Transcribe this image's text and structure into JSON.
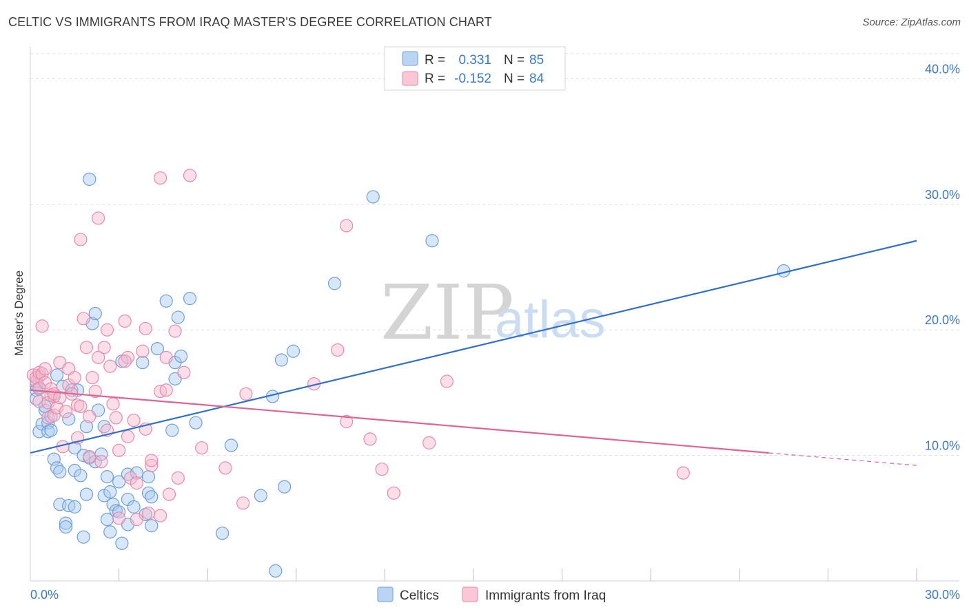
{
  "title": "CELTIC VS IMMIGRANTS FROM IRAQ MASTER'S DEGREE CORRELATION CHART",
  "source": "Source: ZipAtlas.com",
  "watermark": {
    "part1": "ZIP",
    "part2": "atlas"
  },
  "colors": {
    "celtic_fill": "#a9c9f0",
    "celtic_stroke": "#6d9fdb",
    "celtic_line": "#2f6fcf",
    "iraq_fill": "#f7b9cc",
    "iraq_stroke": "#e98aa8",
    "iraq_line": "#e2638f",
    "axis_label": "#3b78c8",
    "grid": "#dcdcdc"
  },
  "legend": {
    "r_label": "R =",
    "n_label": "N =",
    "rows": [
      {
        "r": "0.331",
        "n": "85"
      },
      {
        "r": "-0.152",
        "n": "84"
      }
    ]
  },
  "chart_data": {
    "type": "scatter",
    "title": "CELTIC VS IMMIGRANTS FROM IRAQ MASTER'S DEGREE CORRELATION CHART",
    "xlabel": "",
    "ylabel": "Master's Degree",
    "xlim": [
      0,
      30
    ],
    "ylim": [
      0,
      42
    ],
    "x_tick_labels": [
      {
        "value": 0,
        "label": "0.0%"
      },
      {
        "value": 30,
        "label": "30.0%"
      }
    ],
    "y_tick_labels": [
      {
        "value": 10,
        "label": "10.0%"
      },
      {
        "value": 20,
        "label": "20.0%"
      },
      {
        "value": 30,
        "label": "30.0%"
      },
      {
        "value": 40,
        "label": "40.0%"
      }
    ],
    "x_minor_ticks": [
      3,
      6,
      9,
      12,
      15,
      18,
      21,
      24,
      27,
      30
    ],
    "grid": true,
    "series": [
      {
        "name": "Celtics",
        "trend": {
          "x": [
            0,
            30
          ],
          "y": [
            10.2,
            27.1
          ],
          "dashed_from": null
        },
        "points": [
          [
            0.2,
            15.6
          ],
          [
            0.2,
            15.2
          ],
          [
            0.2,
            14.5
          ],
          [
            0.3,
            16.3
          ],
          [
            0.3,
            15.4
          ],
          [
            0.3,
            11.9
          ],
          [
            0.4,
            12.5
          ],
          [
            0.5,
            13.6
          ],
          [
            0.5,
            13.9
          ],
          [
            0.6,
            12.6
          ],
          [
            0.6,
            11.9
          ],
          [
            0.7,
            13.1
          ],
          [
            0.7,
            12.0
          ],
          [
            0.8,
            14.7
          ],
          [
            0.8,
            9.7
          ],
          [
            0.9,
            9.0
          ],
          [
            0.9,
            16.4
          ],
          [
            1.0,
            8.7
          ],
          [
            1.0,
            6.1
          ],
          [
            1.1,
            15.5
          ],
          [
            1.2,
            4.6
          ],
          [
            1.2,
            4.3
          ],
          [
            1.3,
            6.0
          ],
          [
            1.3,
            12.9
          ],
          [
            1.4,
            15.2
          ],
          [
            1.5,
            5.9
          ],
          [
            1.5,
            8.8
          ],
          [
            1.5,
            10.6
          ],
          [
            1.6,
            15.2
          ],
          [
            1.7,
            8.4
          ],
          [
            1.8,
            10.0
          ],
          [
            1.8,
            3.5
          ],
          [
            1.9,
            6.9
          ],
          [
            1.9,
            12.3
          ],
          [
            2.0,
            32.0
          ],
          [
            2.0,
            9.8
          ],
          [
            2.1,
            20.5
          ],
          [
            2.2,
            9.5
          ],
          [
            2.2,
            21.3
          ],
          [
            2.3,
            13.6
          ],
          [
            2.4,
            10.1
          ],
          [
            2.5,
            12.3
          ],
          [
            2.5,
            6.8
          ],
          [
            2.6,
            8.3
          ],
          [
            2.6,
            4.9
          ],
          [
            2.7,
            7.1
          ],
          [
            2.7,
            3.9
          ],
          [
            2.8,
            6.1
          ],
          [
            2.9,
            5.6
          ],
          [
            3.0,
            7.9
          ],
          [
            3.0,
            5.5
          ],
          [
            3.1,
            17.5
          ],
          [
            3.1,
            3.0
          ],
          [
            3.3,
            6.5
          ],
          [
            3.3,
            8.5
          ],
          [
            3.3,
            4.5
          ],
          [
            3.5,
            5.9
          ],
          [
            3.6,
            8.6
          ],
          [
            3.8,
            17.4
          ],
          [
            3.9,
            5.3
          ],
          [
            4.0,
            8.3
          ],
          [
            4.0,
            7.0
          ],
          [
            4.1,
            4.4
          ],
          [
            4.1,
            6.7
          ],
          [
            4.3,
            18.5
          ],
          [
            4.6,
            22.3
          ],
          [
            4.8,
            12.0
          ],
          [
            4.9,
            17.4
          ],
          [
            4.9,
            16.1
          ],
          [
            5.1,
            17.9
          ],
          [
            5.4,
            22.5
          ],
          [
            5.6,
            12.6
          ],
          [
            6.5,
            3.8
          ],
          [
            6.8,
            10.8
          ],
          [
            7.8,
            6.8
          ],
          [
            8.2,
            14.7
          ],
          [
            8.3,
            0.8
          ],
          [
            8.5,
            17.6
          ],
          [
            8.6,
            7.5
          ],
          [
            8.9,
            18.3
          ],
          [
            10.3,
            23.7
          ],
          [
            11.6,
            30.6
          ],
          [
            13.6,
            27.1
          ],
          [
            25.5,
            24.7
          ],
          [
            5.0,
            21.0
          ]
        ]
      },
      {
        "name": "Immigrants from Iraq",
        "trend": {
          "x": [
            0,
            30
          ],
          "y": [
            15.2,
            9.2
          ],
          "dashed_from": 25
        },
        "points": [
          [
            0.1,
            16.4
          ],
          [
            0.2,
            15.9
          ],
          [
            0.2,
            16.2
          ],
          [
            0.3,
            15.3
          ],
          [
            0.3,
            16.6
          ],
          [
            0.3,
            14.3
          ],
          [
            0.4,
            20.3
          ],
          [
            0.4,
            16.5
          ],
          [
            0.5,
            15.8
          ],
          [
            0.5,
            16.9
          ],
          [
            0.6,
            14.2
          ],
          [
            0.6,
            13.0
          ],
          [
            0.7,
            15.3
          ],
          [
            0.7,
            14.8
          ],
          [
            0.8,
            14.9
          ],
          [
            0.8,
            13.2
          ],
          [
            0.9,
            13.8
          ],
          [
            1.0,
            17.4
          ],
          [
            1.0,
            14.6
          ],
          [
            1.1,
            10.7
          ],
          [
            1.2,
            13.5
          ],
          [
            1.3,
            16.9
          ],
          [
            1.3,
            15.6
          ],
          [
            1.4,
            14.9
          ],
          [
            1.5,
            16.2
          ],
          [
            1.6,
            11.4
          ],
          [
            1.6,
            14.0
          ],
          [
            1.7,
            13.9
          ],
          [
            1.7,
            27.2
          ],
          [
            1.8,
            20.9
          ],
          [
            1.9,
            18.6
          ],
          [
            2.0,
            13.1
          ],
          [
            2.0,
            9.9
          ],
          [
            2.1,
            16.2
          ],
          [
            2.2,
            15.1
          ],
          [
            2.3,
            28.9
          ],
          [
            2.3,
            17.8
          ],
          [
            2.4,
            9.5
          ],
          [
            2.5,
            18.6
          ],
          [
            2.6,
            12.0
          ],
          [
            2.6,
            20.0
          ],
          [
            2.7,
            17.1
          ],
          [
            2.8,
            14.1
          ],
          [
            2.9,
            13.0
          ],
          [
            3.0,
            10.4
          ],
          [
            3.0,
            5.0
          ],
          [
            3.2,
            20.7
          ],
          [
            3.3,
            17.8
          ],
          [
            3.3,
            11.5
          ],
          [
            3.4,
            8.2
          ],
          [
            3.5,
            12.8
          ],
          [
            3.6,
            7.8
          ],
          [
            3.6,
            4.9
          ],
          [
            3.8,
            18.3
          ],
          [
            3.9,
            20.1
          ],
          [
            3.9,
            12.1
          ],
          [
            4.0,
            5.4
          ],
          [
            4.1,
            9.2
          ],
          [
            4.1,
            9.6
          ],
          [
            4.4,
            5.2
          ],
          [
            4.4,
            15.1
          ],
          [
            4.4,
            32.1
          ],
          [
            4.6,
            15.2
          ],
          [
            4.6,
            17.8
          ],
          [
            4.7,
            6.9
          ],
          [
            4.9,
            19.9
          ],
          [
            5.0,
            8.2
          ],
          [
            5.2,
            16.6
          ],
          [
            5.8,
            10.6
          ],
          [
            6.6,
            9.0
          ],
          [
            7.2,
            6.2
          ],
          [
            7.3,
            14.9
          ],
          [
            9.6,
            15.7
          ],
          [
            10.4,
            18.4
          ],
          [
            10.7,
            28.3
          ],
          [
            10.7,
            12.7
          ],
          [
            11.5,
            11.3
          ],
          [
            11.9,
            8.9
          ],
          [
            12.3,
            7.0
          ],
          [
            13.5,
            11.0
          ],
          [
            14.1,
            15.9
          ],
          [
            22.1,
            8.6
          ],
          [
            5.4,
            32.3
          ],
          [
            3.2,
            17.5
          ]
        ]
      }
    ]
  },
  "bottom_legend": [
    {
      "label": "Celtics"
    },
    {
      "label": "Immigrants from Iraq"
    }
  ]
}
